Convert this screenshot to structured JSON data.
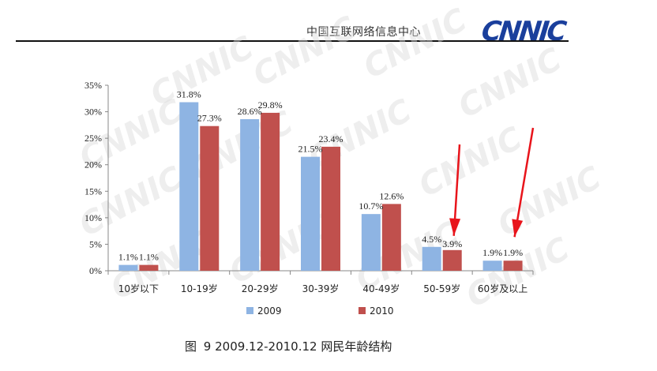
{
  "header": {
    "org_name": "中国互联网络信息中心",
    "logo_text": "CNNIC"
  },
  "colors": {
    "series_2009": "#8eb4e3",
    "series_2010": "#c0504d",
    "arrow": "#e8141b",
    "watermark": "#d9d9d9"
  },
  "chart_data": {
    "type": "bar",
    "categories": [
      "10岁以下",
      "10-19岁",
      "20-29岁",
      "30-39岁",
      "40-49岁",
      "50-59岁",
      "60岁及以上"
    ],
    "series": [
      {
        "name": "2009",
        "values": [
          1.1,
          31.8,
          28.6,
          21.5,
          10.7,
          4.5,
          1.9
        ],
        "labels": [
          "1.1%",
          "31.8%",
          "28.6%",
          "21.5%",
          "10.7%",
          "4.5%",
          "1.9%"
        ]
      },
      {
        "name": "2010",
        "values": [
          1.1,
          27.3,
          29.8,
          23.4,
          12.6,
          3.9,
          1.9
        ],
        "labels": [
          "1.1%",
          "27.3%",
          "29.8%",
          "23.4%",
          "12.6%",
          "3.9%",
          "1.9%"
        ]
      }
    ],
    "ylim": [
      0,
      35
    ],
    "yticks": [
      "0%",
      "5%",
      "10%",
      "15%",
      "20%",
      "25%",
      "30%",
      "35%"
    ],
    "ytick_values": [
      0,
      5,
      10,
      15,
      20,
      25,
      30,
      35
    ],
    "grid": false,
    "legend_position": "bottom-center",
    "annotations": [
      "red arrow pointing to 50-59岁 2010 bar",
      "red arrow pointing to 60岁及以上 2010 bar"
    ],
    "xlabel": "",
    "ylabel": ""
  },
  "caption": {
    "figure_label": "图",
    "text": "9 2009.12-2010.12 网民年龄结构"
  }
}
